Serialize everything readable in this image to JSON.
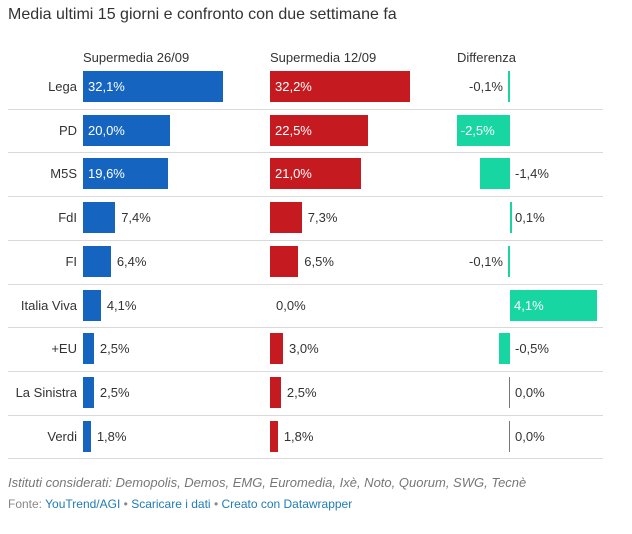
{
  "title": "Media ultimi 15 giorni e confronto con due settimane fa",
  "columns": {
    "current": "Supermedia 26/09",
    "previous": "Supermedia 12/09",
    "difference": "Differenza"
  },
  "chart_data": {
    "type": "bar",
    "title": "Media ultimi 15 giorni e confronto con due settimane fa",
    "categories": [
      "Lega",
      "PD",
      "M5S",
      "FdI",
      "FI",
      "Italia Viva",
      "+EU",
      "La Sinistra",
      "Verdi"
    ],
    "series": [
      {
        "name": "Supermedia 26/09",
        "values": [
          32.1,
          20.0,
          19.6,
          7.4,
          6.4,
          4.1,
          2.5,
          2.5,
          1.8
        ],
        "labels": [
          "32,1%",
          "20,0%",
          "19,6%",
          "7,4%",
          "6,4%",
          "4,1%",
          "2,5%",
          "2,5%",
          "1,8%"
        ],
        "color": "#1565c0"
      },
      {
        "name": "Supermedia 12/09",
        "values": [
          32.2,
          22.5,
          21.0,
          7.3,
          6.5,
          0.0,
          3.0,
          2.5,
          1.8
        ],
        "labels": [
          "32,2%",
          "22,5%",
          "21,0%",
          "7,3%",
          "6,5%",
          "0,0%",
          "3,0%",
          "2,5%",
          "1,8%"
        ],
        "color": "#c61a21"
      },
      {
        "name": "Differenza",
        "values": [
          -0.1,
          -2.5,
          -1.4,
          0.1,
          -0.1,
          4.1,
          -0.5,
          0.0,
          0.0
        ],
        "labels": [
          "-0,1%",
          "-2,5%",
          "-1,4%",
          "0,1%",
          "-0,1%",
          "4,1%",
          "-0,5%",
          "0,0%",
          "0,0%"
        ],
        "color": "#18d6a2"
      }
    ]
  },
  "footer": {
    "note": "Istituti considerati: Demopolis, Demos, EMG, Euromedia, Ixè, Noto, Quorum, SWG, Tecnè",
    "source_prefix": "Fonte:",
    "source": "YouTrend/AGI",
    "download": "Scaricare i dati",
    "created": "Creato con Datawrapper",
    "separator": "•"
  }
}
